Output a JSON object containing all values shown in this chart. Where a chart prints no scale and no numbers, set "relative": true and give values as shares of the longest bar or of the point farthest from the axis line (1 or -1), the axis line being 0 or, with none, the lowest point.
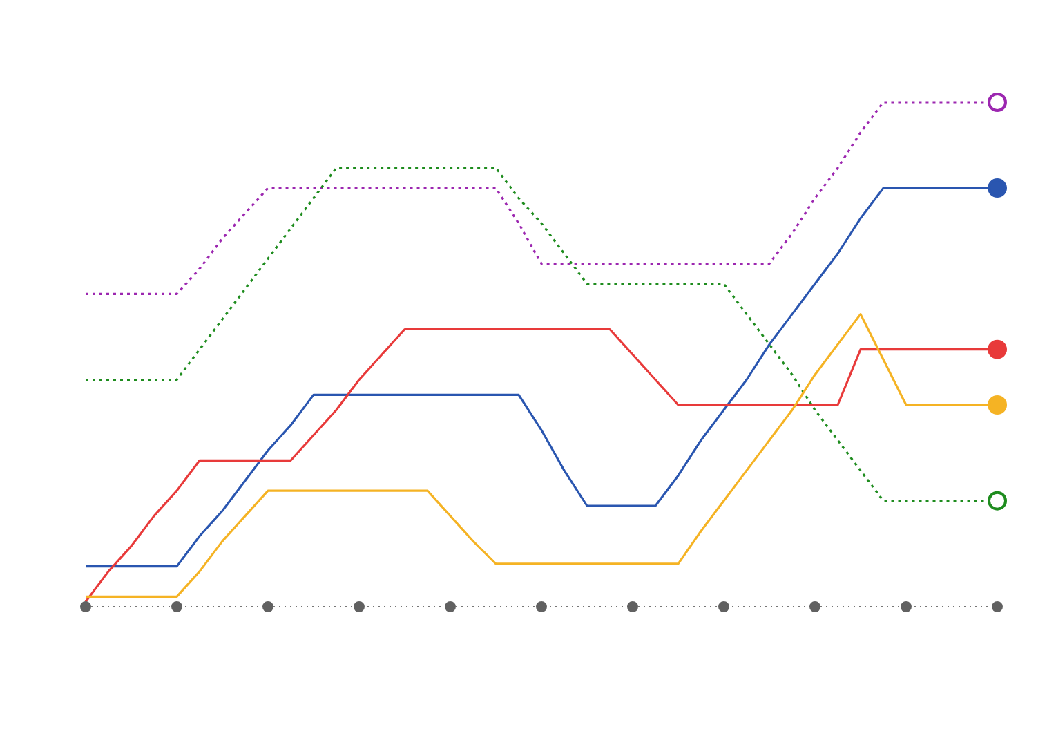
{
  "chart_data": {
    "type": "line",
    "relative": true,
    "categories": [
      null,
      null,
      null,
      null,
      null,
      null,
      null,
      null,
      null,
      null,
      null,
      null,
      null,
      null,
      null,
      null,
      null,
      null,
      null,
      null,
      null,
      null,
      null,
      null,
      null,
      null,
      null,
      null,
      null,
      null,
      null,
      null,
      null,
      null,
      null,
      null,
      null,
      null,
      null,
      null,
      null
    ],
    "series": [
      {
        "color": "#9c27b0",
        "line_style": "dotted",
        "values": [
          0.62,
          0.62,
          0.62,
          0.62,
          0.62,
          0.67,
          0.73,
          0.78,
          0.83,
          0.83,
          0.83,
          0.83,
          0.83,
          0.83,
          0.83,
          0.83,
          0.83,
          0.83,
          0.83,
          0.76,
          0.68,
          0.68,
          0.68,
          0.68,
          0.68,
          0.68,
          0.68,
          0.68,
          0.68,
          0.68,
          0.68,
          0.74,
          0.81,
          0.87,
          0.94,
          1,
          1,
          1,
          1,
          1,
          1
        ]
      },
      {
        "color": "#1e8c1e",
        "line_style": "dotted",
        "values": [
          0.45,
          0.45,
          0.45,
          0.45,
          0.45,
          0.51,
          0.57,
          0.63,
          0.69,
          0.75,
          0.81,
          0.87,
          0.87,
          0.87,
          0.87,
          0.87,
          0.87,
          0.87,
          0.87,
          0.81,
          0.76,
          0.7,
          0.64,
          0.64,
          0.64,
          0.64,
          0.64,
          0.64,
          0.64,
          0.58,
          0.52,
          0.46,
          0.39,
          0.33,
          0.27,
          0.21,
          0.21,
          0.21,
          0.21,
          0.21,
          0.21
        ]
      },
      {
        "color": "#2a56b0",
        "line_style": "solid",
        "values": [
          0.08,
          0.08,
          0.08,
          0.08,
          0.08,
          0.14,
          0.19,
          0.25,
          0.31,
          0.36,
          0.42,
          0.42,
          0.42,
          0.42,
          0.42,
          0.42,
          0.42,
          0.42,
          0.42,
          0.42,
          0.35,
          0.27,
          0.2,
          0.2,
          0.2,
          0.2,
          0.26,
          0.33,
          0.39,
          0.45,
          0.52,
          0.58,
          0.64,
          0.7,
          0.77,
          0.83,
          0.83,
          0.83,
          0.83,
          0.83,
          0.83
        ]
      },
      {
        "color": "#e83a3a",
        "line_style": "solid",
        "values": [
          0.01,
          0.07,
          0.12,
          0.18,
          0.23,
          0.29,
          0.29,
          0.29,
          0.29,
          0.29,
          0.34,
          0.39,
          0.45,
          0.5,
          0.55,
          0.55,
          0.55,
          0.55,
          0.55,
          0.55,
          0.55,
          0.55,
          0.55,
          0.55,
          0.5,
          0.45,
          0.4,
          0.4,
          0.4,
          0.4,
          0.4,
          0.4,
          0.4,
          0.4,
          0.51,
          0.51,
          0.51,
          0.51,
          0.51,
          0.51,
          0.51
        ]
      },
      {
        "color": "#f5b324",
        "line_style": "solid",
        "values": [
          0.02,
          0.02,
          0.02,
          0.02,
          0.02,
          0.07,
          0.13,
          0.18,
          0.23,
          0.23,
          0.23,
          0.23,
          0.23,
          0.23,
          0.23,
          0.23,
          0.18,
          0.13,
          0.085,
          0.085,
          0.085,
          0.085,
          0.085,
          0.085,
          0.085,
          0.085,
          0.085,
          0.15,
          0.21,
          0.27,
          0.33,
          0.39,
          0.46,
          0.52,
          0.58,
          0.49,
          0.4,
          0.4,
          0.4,
          0.4,
          0.4
        ]
      }
    ]
  }
}
